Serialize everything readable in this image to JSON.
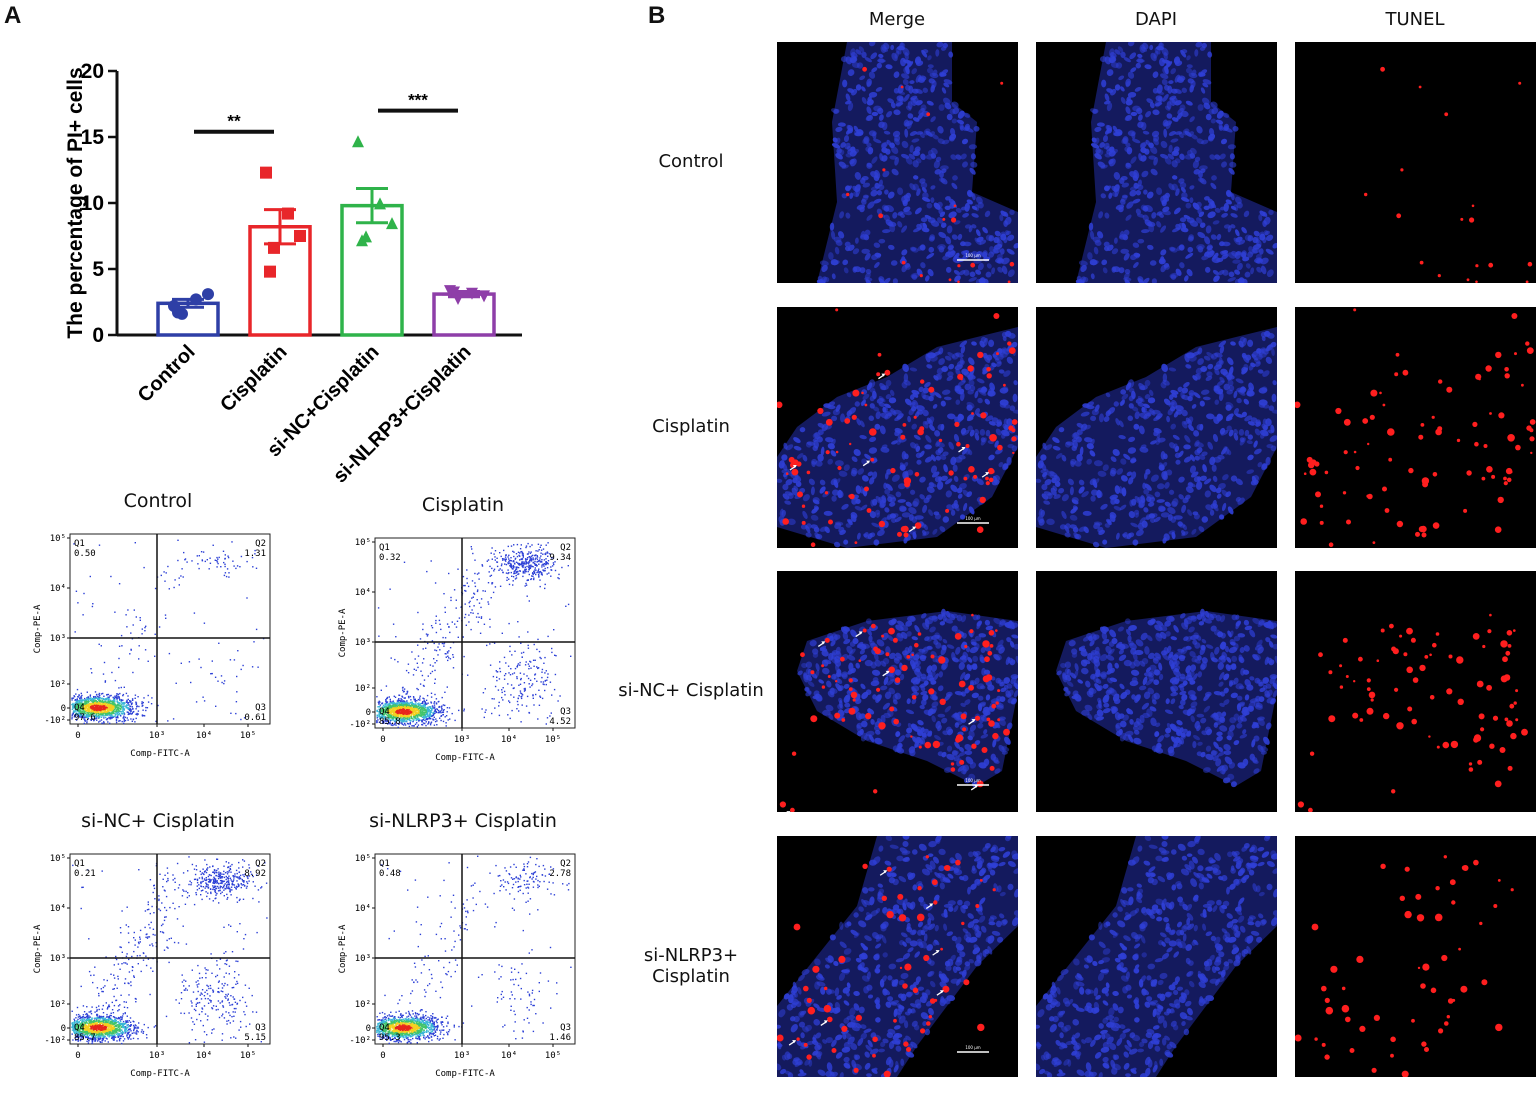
{
  "panel_labels": {
    "a": "A",
    "b": "B"
  },
  "chart_data": {
    "type": "bar",
    "ylabel": "The percentage of PI+ cells",
    "xlabel": "",
    "ylim": [
      0,
      20
    ],
    "yticks": [
      "0",
      "5",
      "10",
      "15",
      "20"
    ],
    "categories": [
      "Control",
      "Cisplatin",
      "si-NC+Cisplatin",
      "si-NLRP3+Cisplatin"
    ],
    "values": [
      2.4,
      8.2,
      9.8,
      3.1
    ],
    "sem": [
      0.3,
      1.3,
      1.3,
      0.2
    ],
    "colors": [
      "#2e3fa6",
      "#e8262a",
      "#2fb34a",
      "#8e3ea8"
    ],
    "markers": [
      "circle",
      "square",
      "triangle-up",
      "triangle-down"
    ],
    "points": [
      [
        2.2,
        2.7,
        3.1,
        1.6,
        1.7
      ],
      [
        12.3,
        9.2,
        7.5,
        6.6,
        4.8
      ],
      [
        14.6,
        9.9,
        8.4,
        7.4,
        7.1
      ],
      [
        3.4,
        3.2,
        3.0,
        2.8,
        3.3
      ]
    ],
    "significance": [
      {
        "between": [
          0,
          1
        ],
        "label": "**"
      },
      {
        "between": [
          2,
          3
        ],
        "label": "***"
      }
    ]
  },
  "flow": {
    "xlabel": "Comp-FITC-A",
    "ylabel": "Comp-PE-A",
    "x_ticks": [
      "0",
      "10³",
      "10⁴",
      "10⁵"
    ],
    "y_ticks": [
      "-10²",
      "0",
      "10²",
      "10³",
      "10⁴",
      "10⁵"
    ],
    "plots": [
      {
        "title": "Control",
        "q1": "0.50",
        "q2": "1.31",
        "q3": "0.61",
        "q4": "97.6"
      },
      {
        "title": "Cisplatin",
        "q1": "0.32",
        "q2": "9.34",
        "q3": "4.52",
        "q4": "85.8"
      },
      {
        "title": "si-NC+ Cisplatin",
        "q1": "0.21",
        "q2": "8.92",
        "q3": "5.15",
        "q4": "85.7"
      },
      {
        "title": "si-NLRP3+ Cisplatin",
        "q1": "0.48",
        "q2": "2.78",
        "q3": "1.46",
        "q4": "95.3"
      }
    ],
    "quadrant_labels": [
      "Q1",
      "Q2",
      "Q3",
      "Q4"
    ]
  },
  "micro": {
    "columns": [
      "Merge",
      "DAPI",
      "TUNEL"
    ],
    "rows": [
      "Control",
      "Cisplatin",
      "si-NC+ Cisplatin",
      "si-NLRP3+ Cisplatin"
    ],
    "scale_bar": "100 μm",
    "colors": {
      "dapi": "#2f3fd6",
      "tunel": "#ff1f1f"
    }
  }
}
